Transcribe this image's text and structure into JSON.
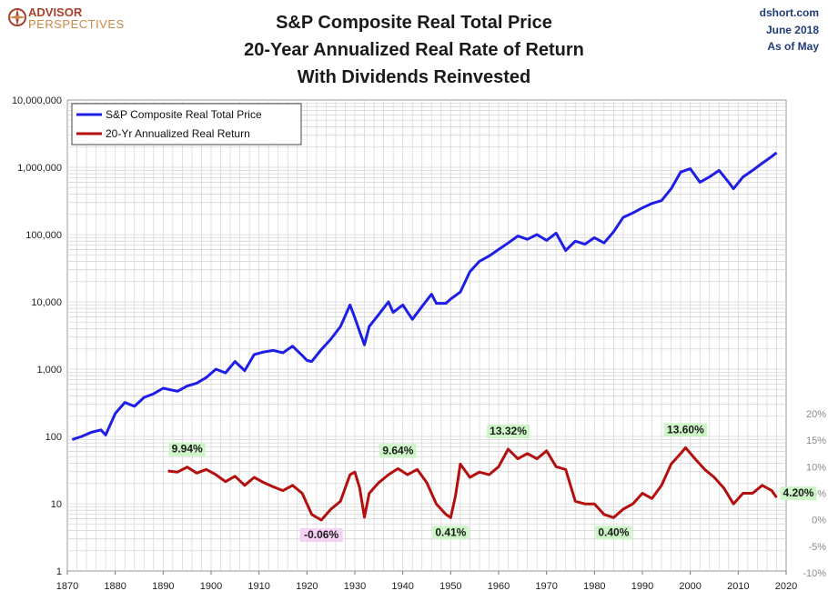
{
  "header": {
    "title_lines": [
      "S&P Composite Real Total Price",
      "20-Year Annualized Real Rate of Return",
      "With Dividends Reinvested"
    ],
    "logo_top": "ADVISOR",
    "logo_bottom": "PERSPECTIVES",
    "source": "dshort.com",
    "date": "June 2018",
    "as_of": "As of May"
  },
  "colors": {
    "price_line": "#1e1ee6",
    "return_line": "#b30f0f",
    "grid": "#d7d7d7",
    "highlight_green": "#cdf5c7",
    "highlight_pink": "#f4d2f4",
    "logo": "#a8402c"
  },
  "chart_data": {
    "type": "line",
    "x_axis": {
      "range": [
        1870,
        2020
      ],
      "ticks": [
        "1870",
        "1880",
        "1890",
        "1900",
        "1910",
        "1920",
        "1930",
        "1940",
        "1950",
        "1960",
        "1970",
        "1980",
        "1990",
        "2000",
        "2010",
        "2020"
      ]
    },
    "y_left": {
      "scale": "log",
      "range": [
        1,
        10000000
      ],
      "ticks": [
        "1",
        "10",
        "100",
        "1,000",
        "10,000",
        "100,000",
        "1,000,000",
        "10,000,000"
      ]
    },
    "y_right": {
      "range": [
        -10,
        20
      ],
      "unit": "%",
      "ticks": [
        "-10%",
        "-5%",
        "0%",
        "5%",
        "10%",
        "15%",
        "20%"
      ]
    },
    "legend": {
      "position": "top-left",
      "entries": [
        "S&P Composite Real Total Price",
        "20-Yr Annualized Real Return"
      ]
    },
    "grid": true,
    "series": [
      {
        "name": "S&P Composite Real Total Price",
        "axis": "left",
        "x": [
          1871,
          1873,
          1875,
          1877,
          1878,
          1880,
          1882,
          1884,
          1886,
          1888,
          1890,
          1893,
          1895,
          1897,
          1899,
          1901,
          1903,
          1905,
          1907,
          1909,
          1911,
          1913,
          1915,
          1917,
          1919,
          1920,
          1921,
          1923,
          1925,
          1927,
          1929,
          1930,
          1931,
          1932,
          1933,
          1935,
          1937,
          1938,
          1940,
          1942,
          1944,
          1946,
          1947,
          1949,
          1950,
          1952,
          1954,
          1956,
          1958,
          1960,
          1962,
          1964,
          1966,
          1968,
          1970,
          1972,
          1974,
          1976,
          1978,
          1980,
          1982,
          1984,
          1986,
          1988,
          1990,
          1992,
          1994,
          1996,
          1998,
          2000,
          2002,
          2004,
          2006,
          2008,
          2009,
          2011,
          2013,
          2015,
          2017,
          2018
        ],
        "values": [
          90,
          100,
          115,
          125,
          105,
          220,
          320,
          280,
          380,
          430,
          520,
          470,
          560,
          620,
          750,
          1000,
          880,
          1300,
          950,
          1650,
          1800,
          1900,
          1750,
          2200,
          1600,
          1350,
          1300,
          1950,
          2800,
          4300,
          9000,
          5800,
          3600,
          2300,
          4300,
          6500,
          10000,
          7000,
          9000,
          5500,
          8500,
          13000,
          9500,
          9500,
          11000,
          14000,
          28000,
          40000,
          48000,
          60000,
          75000,
          95000,
          85000,
          100000,
          82000,
          105000,
          58000,
          80000,
          72000,
          90000,
          75000,
          110000,
          180000,
          210000,
          250000,
          290000,
          320000,
          480000,
          850000,
          950000,
          600000,
          720000,
          900000,
          600000,
          480000,
          720000,
          900000,
          1150000,
          1450000,
          1650000
        ]
      },
      {
        "name": "20-Yr Annualized Real Return",
        "axis": "right",
        "x": [
          1891,
          1893,
          1895,
          1897,
          1899,
          1901,
          1903,
          1905,
          1907,
          1909,
          1911,
          1913,
          1915,
          1917,
          1919,
          1921,
          1923,
          1925,
          1927,
          1929,
          1930,
          1931,
          1932,
          1933,
          1935,
          1937,
          1939,
          1941,
          1943,
          1945,
          1947,
          1949,
          1950,
          1951,
          1952,
          1954,
          1956,
          1958,
          1960,
          1962,
          1964,
          1966,
          1968,
          1970,
          1972,
          1974,
          1976,
          1978,
          1980,
          1982,
          1984,
          1986,
          1988,
          1990,
          1992,
          1994,
          1996,
          1998,
          1999,
          2001,
          2003,
          2005,
          2007,
          2009,
          2011,
          2013,
          2015,
          2017,
          2018
        ],
        "values": [
          9.2,
          9.0,
          9.94,
          8.8,
          9.5,
          8.5,
          7.2,
          8.2,
          6.5,
          8.0,
          7.0,
          6.2,
          5.5,
          6.5,
          5.0,
          1.0,
          -0.06,
          2.0,
          3.5,
          8.5,
          9.0,
          6.0,
          0.5,
          5.0,
          7.0,
          8.5,
          9.64,
          8.5,
          9.5,
          7.0,
          3.0,
          1.0,
          0.41,
          4.5,
          10.5,
          8.0,
          9.0,
          8.5,
          10.0,
          13.32,
          11.5,
          12.5,
          11.5,
          13.0,
          10.0,
          9.5,
          3.5,
          3.0,
          3.0,
          1.0,
          0.4,
          2.0,
          3.0,
          5.0,
          4.0,
          6.5,
          10.5,
          12.5,
          13.6,
          11.5,
          9.5,
          8.0,
          6.0,
          3.0,
          5.0,
          5.0,
          6.5,
          5.5,
          4.2
        ]
      }
    ],
    "annotations": [
      {
        "x": 1895,
        "value": 9.94,
        "text": "9.94%",
        "color": "green"
      },
      {
        "x": 1923,
        "value": -0.06,
        "text": "-0.06%",
        "color": "pink"
      },
      {
        "x": 1939,
        "value": 9.64,
        "text": "9.64%",
        "color": "green"
      },
      {
        "x": 1950,
        "value": 0.41,
        "text": "0.41%",
        "color": "green"
      },
      {
        "x": 1962,
        "value": 13.32,
        "text": "13.32%",
        "color": "green"
      },
      {
        "x": 1984,
        "value": 0.4,
        "text": "0.40%",
        "color": "green"
      },
      {
        "x": 1999,
        "value": 13.6,
        "text": "13.60%",
        "color": "green"
      },
      {
        "x": 2018,
        "value": 4.2,
        "text": "4.20%",
        "color": "green"
      }
    ]
  }
}
